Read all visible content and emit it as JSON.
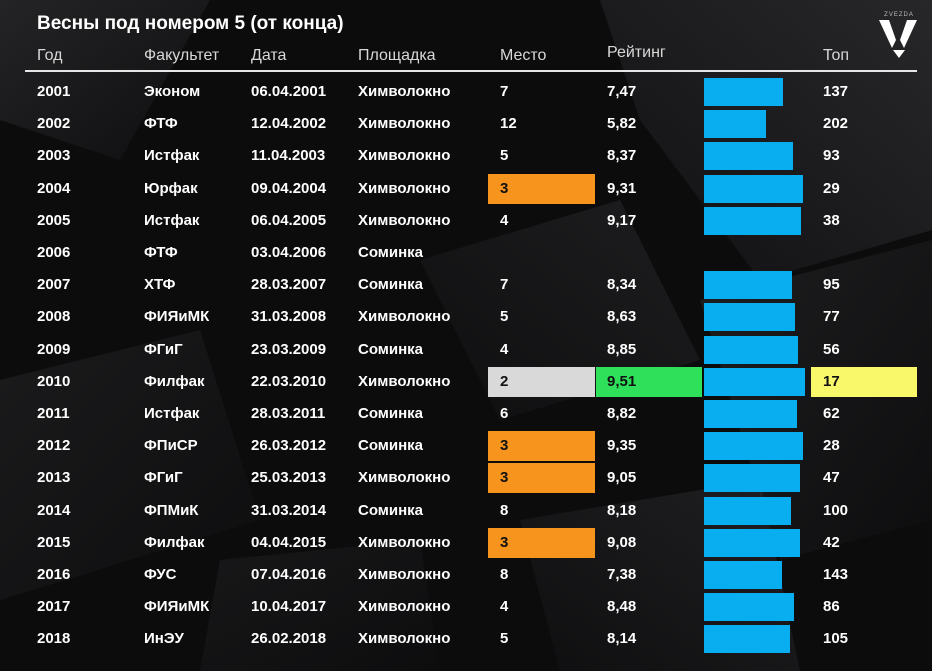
{
  "title": "Весны под номером 5 (от конца)",
  "logo": {
    "small_text": "ZVEZDA",
    "icon": "zvezda-v-logo-icon"
  },
  "colors": {
    "background": "#0c0c0d",
    "bar": "#08aef0",
    "place_top3": "#f7941d",
    "place_second": "#d9d9d9",
    "rating_best": "#2ee05a",
    "top_best": "#f9f76a"
  },
  "headers": {
    "year": "Год",
    "faculty": "Факультет",
    "date": "Дата",
    "venue": "Площадка",
    "place": "Место",
    "rating": "Рейтинг",
    "top": "Топ"
  },
  "chart_data": {
    "type": "table",
    "title": "Весны под номером 5 (от конца)",
    "columns": [
      "Год",
      "Факультет",
      "Дата",
      "Площадка",
      "Место",
      "Рейтинг",
      "Топ"
    ],
    "bar_column": "Рейтинг",
    "rows": [
      {
        "year": "2001",
        "faculty": "Эконом",
        "date": "06.04.2001",
        "venue": "Химволокно",
        "place": "7",
        "rating": "7,47",
        "value": 7.47,
        "top": "137"
      },
      {
        "year": "2002",
        "faculty": "ФТФ",
        "date": "12.04.2002",
        "venue": "Химволокно",
        "place": "12",
        "rating": "5,82",
        "value": 5.82,
        "top": "202"
      },
      {
        "year": "2003",
        "faculty": "Истфак",
        "date": "11.04.2003",
        "venue": "Химволокно",
        "place": "5",
        "rating": "8,37",
        "value": 8.37,
        "top": "93"
      },
      {
        "year": "2004",
        "faculty": "Юрфак",
        "date": "09.04.2004",
        "venue": "Химволокно",
        "place": "3",
        "rating": "9,31",
        "value": 9.31,
        "top": "29",
        "place_hl": "top3"
      },
      {
        "year": "2005",
        "faculty": "Истфак",
        "date": "06.04.2005",
        "venue": "Химволокно",
        "place": "4",
        "rating": "9,17",
        "value": 9.17,
        "top": "38"
      },
      {
        "year": "2006",
        "faculty": "ФТФ",
        "date": "03.04.2006",
        "venue": "Соминка",
        "place": "",
        "rating": "",
        "value": null,
        "top": ""
      },
      {
        "year": "2007",
        "faculty": "ХТФ",
        "date": "28.03.2007",
        "venue": "Соминка",
        "place": "7",
        "rating": "8,34",
        "value": 8.34,
        "top": "95"
      },
      {
        "year": "2008",
        "faculty": "ФИЯиМК",
        "date": "31.03.2008",
        "venue": "Химволокно",
        "place": "5",
        "rating": "8,63",
        "value": 8.63,
        "top": "77"
      },
      {
        "year": "2009",
        "faculty": "ФГиГ",
        "date": "23.03.2009",
        "venue": "Соминка",
        "place": "4",
        "rating": "8,85",
        "value": 8.85,
        "top": "56"
      },
      {
        "year": "2010",
        "faculty": "Филфак",
        "date": "22.03.2010",
        "venue": "Химволокно",
        "place": "2",
        "rating": "9,51",
        "value": 9.51,
        "top": "17",
        "place_hl": "second",
        "rating_hl": true,
        "top_hl": true
      },
      {
        "year": "2011",
        "faculty": "Истфак",
        "date": "28.03.2011",
        "venue": "Соминка",
        "place": "6",
        "rating": "8,82",
        "value": 8.82,
        "top": "62"
      },
      {
        "year": "2012",
        "faculty": "ФПиСР",
        "date": "26.03.2012",
        "venue": "Соминка",
        "place": "3",
        "rating": "9,35",
        "value": 9.35,
        "top": "28",
        "place_hl": "top3"
      },
      {
        "year": "2013",
        "faculty": "ФГиГ",
        "date": "25.03.2013",
        "venue": "Химволокно",
        "place": "3",
        "rating": "9,05",
        "value": 9.05,
        "top": "47",
        "place_hl": "top3"
      },
      {
        "year": "2014",
        "faculty": "ФПМиК",
        "date": "31.03.2014",
        "venue": "Соминка",
        "place": "8",
        "rating": "8,18",
        "value": 8.18,
        "top": "100"
      },
      {
        "year": "2015",
        "faculty": "Филфак",
        "date": "04.04.2015",
        "venue": "Химволокно",
        "place": "3",
        "rating": "9,08",
        "value": 9.08,
        "top": "42",
        "place_hl": "top3"
      },
      {
        "year": "2016",
        "faculty": "ФУС",
        "date": "07.04.2016",
        "venue": "Химволокно",
        "place": "8",
        "rating": "7,38",
        "value": 7.38,
        "top": "143"
      },
      {
        "year": "2017",
        "faculty": "ФИЯиМК",
        "date": "10.04.2017",
        "venue": "Химволокно",
        "place": "4",
        "rating": "8,48",
        "value": 8.48,
        "top": "86"
      },
      {
        "year": "2018",
        "faculty": "ИнЭУ",
        "date": "26.02.2018",
        "venue": "Химволокно",
        "place": "5",
        "rating": "8,14",
        "value": 8.14,
        "top": "105"
      }
    ]
  }
}
